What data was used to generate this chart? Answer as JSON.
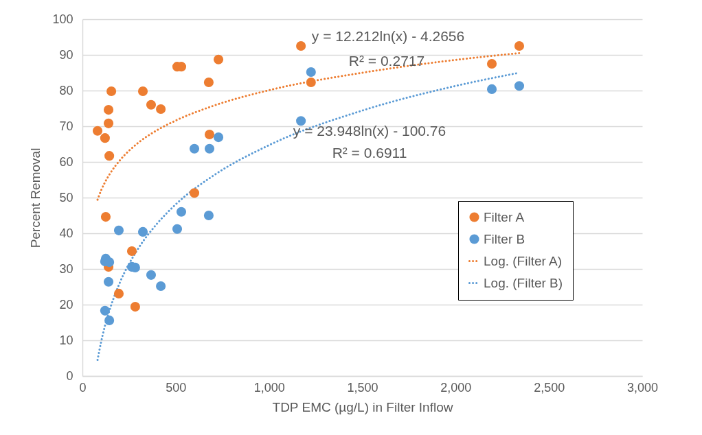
{
  "chart_data": {
    "type": "scatter",
    "xlabel": "TDP EMC (µg/L) in Filter Inflow",
    "ylabel": "Percent Removal",
    "xlim": [
      0,
      3000
    ],
    "xticks": [
      0,
      500,
      {
        "value": 1000,
        "label": "1,000"
      },
      {
        "value": 1500,
        "label": "1,500"
      },
      {
        "value": 2000,
        "label": "2,000"
      },
      {
        "value": 2500,
        "label": "2,500"
      },
      {
        "value": 3000,
        "label": "3,000"
      }
    ],
    "ylim": [
      0,
      100
    ],
    "yticks": [
      0,
      10,
      20,
      30,
      40,
      50,
      60,
      70,
      80,
      90,
      100
    ],
    "grid": "y",
    "legend": "bottom right",
    "line_style": "dotted",
    "series": [
      {
        "name": "Filter A",
        "marker": "circle",
        "color": "#ed7d31",
        "x": [
          81,
          121,
          140,
          140,
          155,
          144,
          125,
          140,
          195,
          265,
          283,
          324,
          368,
          420,
          508,
          530,
          729,
          677,
          681,
          600,
          1171,
          1225,
          2194,
          2341
        ],
        "values": [
          68.7,
          66.7,
          70.8,
          74.6,
          79.8,
          61.7,
          44.6,
          30.6,
          23.1,
          35,
          19.4,
          79.8,
          76,
          74.8,
          86.7,
          86.7,
          88.7,
          82.3,
          67.7,
          51.3,
          92.5,
          82.3,
          87.5,
          92.5
        ]
      },
      {
        "name": "Filter B",
        "marker": "circle",
        "color": "#5b9bd5",
        "x": [
          600,
          681,
          729,
          530,
          677,
          508,
          195,
          324,
          125,
          121,
          144,
          265,
          283,
          368,
          420,
          140,
          121,
          144,
          1225,
          1171,
          2194,
          2341
        ],
        "values": [
          63.7,
          63.7,
          66.9,
          46,
          45,
          41.2,
          40.8,
          40.4,
          32.9,
          32.1,
          31.9,
          30.6,
          30.4,
          28.3,
          25.2,
          26.4,
          18.3,
          15.6,
          85.2,
          71.5,
          80.4,
          81.3
        ]
      },
      {
        "name": "Log. (Filter A)",
        "type": "line",
        "marker": "none",
        "color": "#ed7d31",
        "x": [
          81,
          100,
          120,
          150,
          200,
          300,
          400,
          500,
          700,
          1000,
          1500,
          2000,
          2341
        ],
        "values": [
          49.4,
          52.0,
          54.2,
          56.9,
          60.4,
          65.4,
          68.9,
          71.6,
          75.7,
          80.1,
          85.0,
          88.6,
          90.5
        ]
      },
      {
        "name": "Log. (Filter B)",
        "type": "line",
        "marker": "none",
        "color": "#5b9bd5",
        "x": [
          81,
          100,
          120,
          150,
          200,
          300,
          400,
          500,
          700,
          1000,
          1500,
          2000,
          2341
        ],
        "values": [
          4.5,
          9.5,
          13.9,
          19.2,
          26.1,
          35.8,
          42.7,
          48.1,
          56.1,
          64.7,
          74.4,
          81.3,
          85.0
        ]
      }
    ],
    "annotations": [
      "y = 12.212ln(x) - 4.2656",
      "R² = 0.2717",
      "y = 23.948ln(x) - 100.76",
      "R² = 0.6911"
    ]
  }
}
